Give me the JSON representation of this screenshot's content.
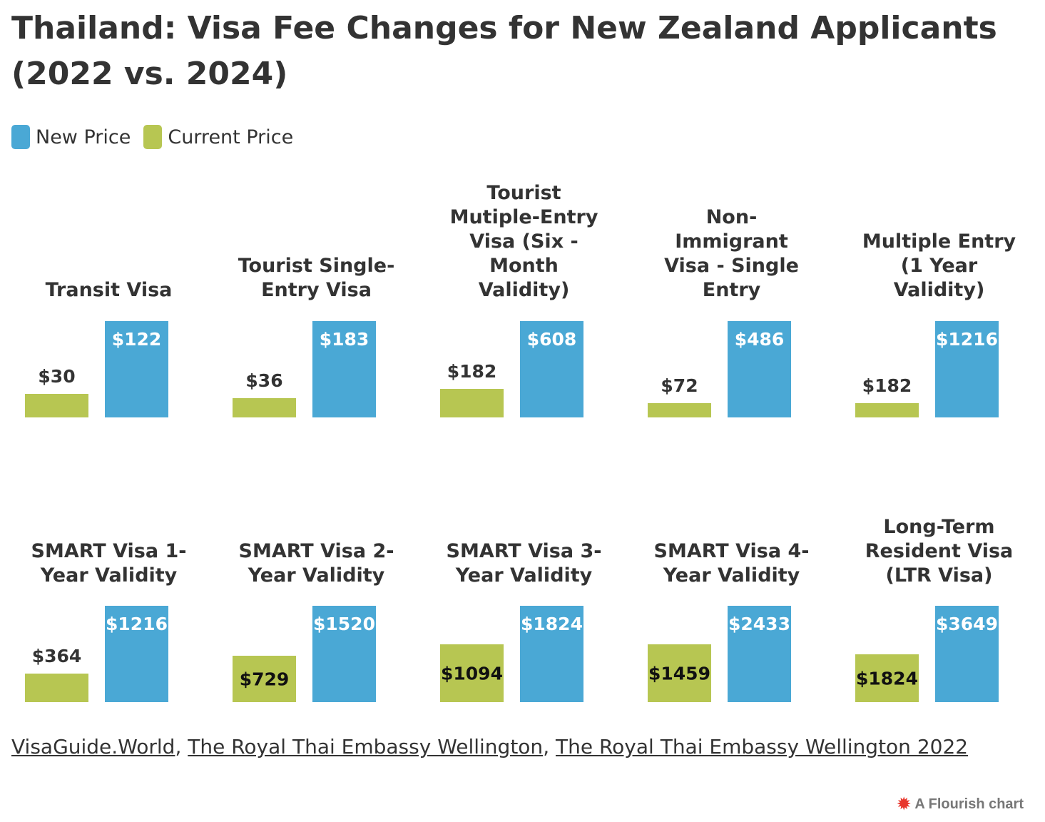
{
  "title": "Thailand: Visa Fee Changes for New Zealand Applicants (2022 vs. 2024)",
  "legend": [
    {
      "label": "New Price",
      "color": "#4aa8d5"
    },
    {
      "label": "Current Price",
      "color": "#b7c652"
    }
  ],
  "sources": [
    "VisaGuide.World",
    "The Royal Thai Embassy Wellington",
    "The Royal Thai Embassy Wellington 2022"
  ],
  "credit": {
    "text": "A Flourish chart",
    "icon": "flourish-logo-icon"
  },
  "chart_data": {
    "type": "bar",
    "layout": "small-multiples",
    "series": [
      {
        "name": "Current Price",
        "color": "#b7c652"
      },
      {
        "name": "New Price",
        "color": "#4aa8d5"
      }
    ],
    "value_prefix": "$",
    "panels": [
      {
        "title": "Transit Visa",
        "values": [
          30,
          122
        ]
      },
      {
        "title": "Tourist Single-Entry Visa",
        "values": [
          36,
          183
        ]
      },
      {
        "title": "Tourist Mutiple-Entry Visa (Six -Month Validity)",
        "values": [
          182,
          608
        ]
      },
      {
        "title": "Non-Immigrant Visa - Single Entry",
        "values": [
          72,
          486
        ]
      },
      {
        "title": "Multiple Entry (1 Year Validity)",
        "values": [
          182,
          1216
        ]
      },
      {
        "title": "SMART Visa 1-Year Validity",
        "values": [
          364,
          1216
        ]
      },
      {
        "title": "SMART Visa 2-Year Validity",
        "values": [
          729,
          1520
        ]
      },
      {
        "title": "SMART Visa 3-Year Validity",
        "values": [
          1094,
          1824
        ]
      },
      {
        "title": "SMART Visa 4-Year Validity",
        "values": [
          1459,
          2433
        ]
      },
      {
        "title": "Long-Term Resident Visa (LTR Visa)",
        "values": [
          1824,
          3649
        ]
      }
    ]
  }
}
